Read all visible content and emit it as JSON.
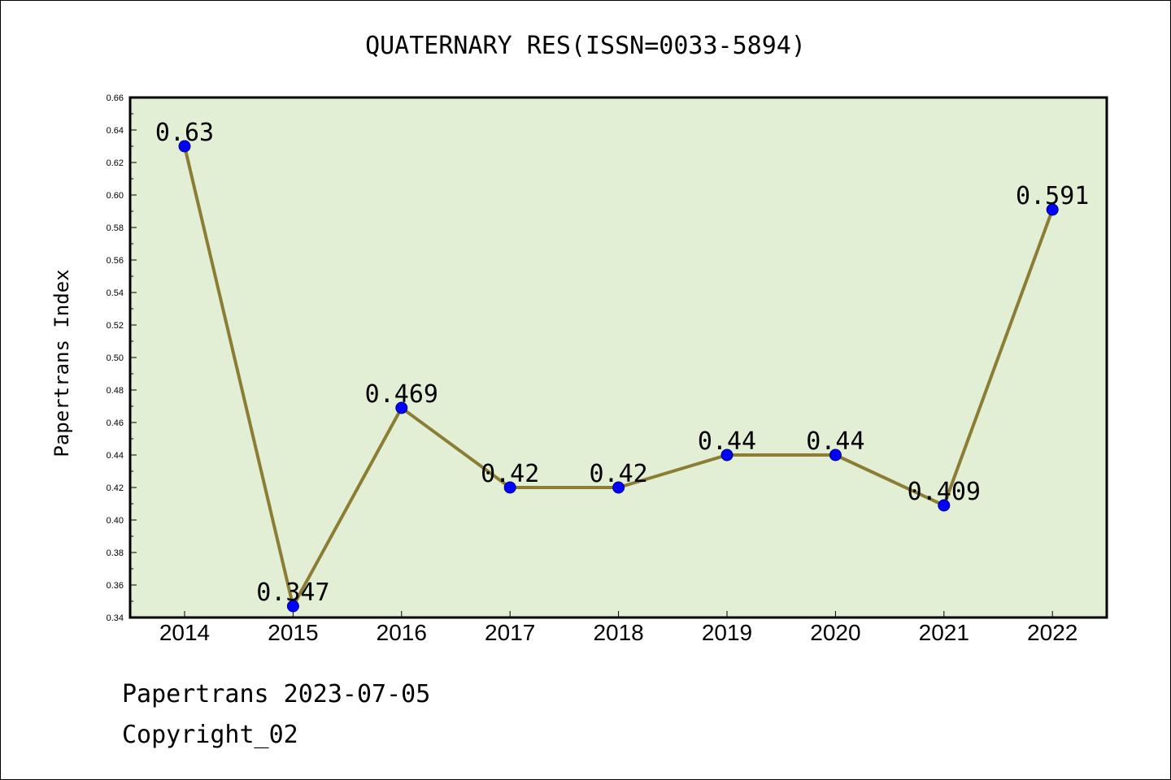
{
  "chart_data": {
    "type": "line",
    "title": "QUATERNARY RES(ISSN=0033-5894)",
    "xlabel": "",
    "ylabel": "Papertrans Index",
    "categories": [
      "2014",
      "2015",
      "2016",
      "2017",
      "2018",
      "2019",
      "2020",
      "2021",
      "2022"
    ],
    "series": [
      {
        "values": [
          0.63,
          0.347,
          0.469,
          0.42,
          0.42,
          0.44,
          0.44,
          0.409,
          0.591
        ],
        "labels": [
          "0.63",
          "0.347",
          "0.469",
          "0.42",
          "0.42",
          "0.44",
          "0.44",
          "0.409",
          "0.591"
        ]
      }
    ],
    "ylim": [
      0.34,
      0.66
    ],
    "yticks": [
      "0.34",
      "0.36",
      "0.38",
      "0.40",
      "0.42",
      "0.44",
      "0.46",
      "0.48",
      "0.50",
      "0.52",
      "0.54",
      "0.56",
      "0.58",
      "0.60",
      "0.62",
      "0.64",
      "0.66"
    ],
    "grid": false,
    "legend": "none",
    "colors": {
      "line": "#8B7D33",
      "marker": "#0000FF",
      "plot_background": "#E2EFD5",
      "frame": "#000000"
    }
  },
  "footer": {
    "source": "Papertrans 2023-07-05",
    "copyright": "Copyright_02"
  }
}
